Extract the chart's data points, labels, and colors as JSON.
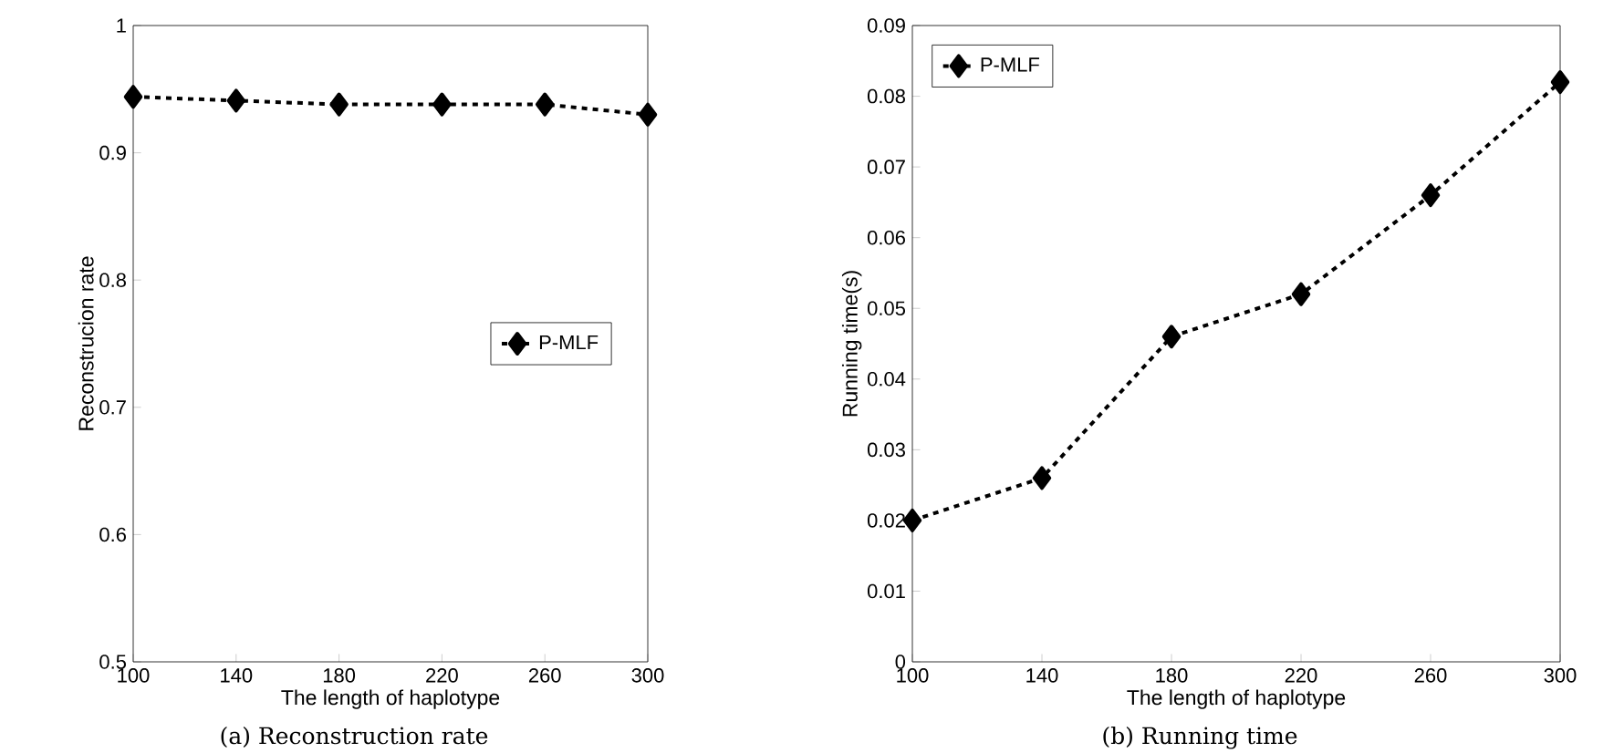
{
  "chart_data": [
    {
      "type": "line",
      "title": "(a) Reconstruction rate",
      "xlabel": "The length of haplotype",
      "ylabel": "Reconstrucion rate",
      "x": [
        100,
        140,
        180,
        220,
        260,
        300
      ],
      "series": [
        {
          "name": "P-MLF",
          "color": "#000000",
          "values": [
            0.944,
            0.941,
            0.938,
            0.938,
            0.938,
            0.93
          ]
        }
      ],
      "xlim": [
        100,
        300
      ],
      "xticks": [
        100,
        140,
        180,
        220,
        260,
        300
      ],
      "ylim": [
        0.5,
        1
      ],
      "yticks": [
        0.5,
        0.6,
        0.7,
        0.8,
        0.9,
        1
      ],
      "grid": false,
      "legend": "right",
      "marker": "diamond",
      "line_style": "dashed"
    },
    {
      "type": "line",
      "title": "(b) Running time",
      "xlabel": "The length of haplotype",
      "ylabel": "Running time(s)",
      "x": [
        100,
        140,
        180,
        220,
        260,
        300
      ],
      "series": [
        {
          "name": "P-MLF",
          "color": "#000000",
          "values": [
            0.02,
            0.026,
            0.046,
            0.052,
            0.066,
            0.082
          ]
        }
      ],
      "xlim": [
        100,
        300
      ],
      "xticks": [
        100,
        140,
        180,
        220,
        260,
        300
      ],
      "ylim": [
        0,
        0.09
      ],
      "yticks": [
        0,
        0.01,
        0.02,
        0.03,
        0.04,
        0.05,
        0.06,
        0.07,
        0.08,
        0.09
      ],
      "grid": false,
      "legend": "top left",
      "marker": "diamond",
      "line_style": "dashed"
    }
  ]
}
